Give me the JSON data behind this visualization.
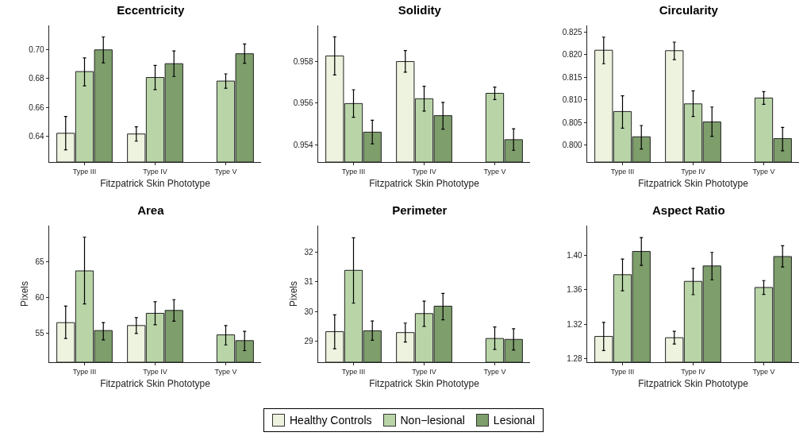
{
  "chart_data": [
    {
      "type": "bar",
      "title": "Eccentricity",
      "xlabel": "Fitzpatrick Skin Phototype",
      "categories": [
        "Type III",
        "Type IV",
        "Type V"
      ],
      "ylim": [
        0.622,
        0.717
      ],
      "yticks": [
        0.64,
        0.66,
        0.68,
        {
          "value": 0.7,
          "label": "0.70"
        }
      ],
      "grid": false,
      "legend": "bottom",
      "series": [
        {
          "name": "Healthy Controls",
          "color": "#edf3df",
          "values": [
            0.642,
            0.6415,
            null
          ],
          "errors": [
            [
              0.6305,
              0.6537
            ],
            [
              0.6365,
              0.6465
            ],
            null
          ]
        },
        {
          "name": "Non−lesional",
          "color": "#b9d5a8",
          "values": [
            0.6849,
            0.6808,
            0.6783
          ],
          "errors": [
            [
              0.675,
              0.6944
            ],
            [
              0.6723,
              0.6892
            ],
            [
              0.6733,
              0.6833
            ]
          ]
        },
        {
          "name": "Lesional",
          "color": "#7e9e6c",
          "values": [
            0.7,
            0.6904,
            0.6973
          ],
          "errors": [
            [
              0.691,
              0.709
            ],
            [
              0.6815,
              0.6993
            ],
            [
              0.6907,
              0.7041
            ]
          ]
        }
      ]
    },
    {
      "type": "bar",
      "title": "Solidity",
      "xlabel": "Fitzpatrick Skin Phototype",
      "categories": [
        "Type III",
        "Type IV",
        "Type V"
      ],
      "ylim": [
        0.95318,
        0.95972
      ],
      "yticks": [
        0.954,
        0.956,
        0.958
      ],
      "grid": false,
      "legend": "bottom",
      "series": [
        {
          "name": "Healthy Controls",
          "color": "#edf3df",
          "values": [
            0.95826,
            0.95799,
            null
          ],
          "errors": [
            [
              0.95735,
              0.95917
            ],
            [
              0.95748,
              0.95852
            ],
            null
          ]
        },
        {
          "name": "Non−lesional",
          "color": "#b9d5a8",
          "values": [
            0.95598,
            0.95621,
            0.95647
          ],
          "errors": [
            [
              0.95532,
              0.95664
            ],
            [
              0.95562,
              0.95681
            ],
            [
              0.95617,
              0.95677
            ]
          ]
        },
        {
          "name": "Lesional",
          "color": "#7e9e6c",
          "values": [
            0.95461,
            0.9554,
            0.95425
          ],
          "errors": [
            [
              0.95405,
              0.95518
            ],
            [
              0.95475,
              0.95604
            ],
            [
              0.95374,
              0.95477
            ]
          ]
        }
      ]
    },
    {
      "type": "bar",
      "title": "Circularity",
      "xlabel": "Fitzpatrick Skin Phototype",
      "categories": [
        "Type III",
        "Type IV",
        "Type V"
      ],
      "ylim": [
        0.7962,
        0.8265
      ],
      "yticks": [
        {
          "value": 0.8,
          "label": "0.800"
        },
        0.805,
        {
          "value": 0.81,
          "label": "0.810"
        },
        0.815,
        {
          "value": 0.82,
          "label": "0.820"
        },
        0.825
      ],
      "grid": false,
      "legend": "bottom",
      "series": [
        {
          "name": "Healthy Controls",
          "color": "#edf3df",
          "values": [
            0.821,
            0.8209,
            null
          ],
          "errors": [
            [
              0.818,
              0.8239
            ],
            [
              0.8189,
              0.8228
            ],
            null
          ]
        },
        {
          "name": "Non−lesional",
          "color": "#b9d5a8",
          "values": [
            0.8074,
            0.8091,
            0.8104
          ],
          "errors": [
            [
              0.8037,
              0.8109
            ],
            [
              0.8063,
              0.812
            ],
            [
              0.809,
              0.8118
            ]
          ]
        },
        {
          "name": "Lesional",
          "color": "#7e9e6c",
          "values": [
            0.8018,
            0.8051,
            0.8014
          ],
          "errors": [
            [
              0.7991,
              0.8043
            ],
            [
              0.8019,
              0.8084
            ],
            [
              0.7987,
              0.8039
            ]
          ]
        }
      ]
    },
    {
      "type": "bar",
      "title": "Area",
      "xlabel": "Fitzpatrick Skin Phototype",
      "ylabel": "Pixels",
      "categories": [
        "Type III",
        "Type IV",
        "Type V"
      ],
      "ylim": [
        51,
        70
      ],
      "yticks": [
        55,
        60,
        65
      ],
      "grid": false,
      "legend": "bottom",
      "series": [
        {
          "name": "Healthy Controls",
          "color": "#edf3df",
          "values": [
            56.5,
            56.1,
            null
          ],
          "errors": [
            [
              54.3,
              58.8
            ],
            [
              55,
              57.2
            ],
            null
          ]
        },
        {
          "name": "Non−lesional",
          "color": "#b9d5a8",
          "values": [
            63.7,
            57.8,
            54.8
          ],
          "errors": [
            [
              59.1,
              68.4
            ],
            [
              56.2,
              59.4
            ],
            [
              53.4,
              56.1
            ]
          ]
        },
        {
          "name": "Lesional",
          "color": "#7e9e6c",
          "values": [
            55.4,
            58.2,
            54
          ],
          "errors": [
            [
              54.1,
              56.5
            ],
            [
              56.7,
              59.7
            ],
            [
              52.6,
              55.3
            ]
          ]
        }
      ]
    },
    {
      "type": "bar",
      "title": "Perimeter",
      "xlabel": "Fitzpatrick Skin Phototype",
      "ylabel": "Pixels",
      "categories": [
        "Type III",
        "Type IV",
        "Type V"
      ],
      "ylim": [
        28.29,
        32.9
      ],
      "yticks": [
        29,
        30,
        31,
        32
      ],
      "grid": false,
      "legend": "bottom",
      "series": [
        {
          "name": "Healthy Controls",
          "color": "#edf3df",
          "values": [
            29.32,
            29.29,
            null
          ],
          "errors": [
            [
              28.74,
              29.89
            ],
            [
              28.97,
              29.61
            ],
            null
          ]
        },
        {
          "name": "Non−lesional",
          "color": "#b9d5a8",
          "values": [
            31.39,
            29.93,
            29.09
          ],
          "errors": [
            [
              30.28,
              32.49
            ],
            [
              29.5,
              30.35
            ],
            [
              28.72,
              29.48
            ]
          ]
        },
        {
          "name": "Lesional",
          "color": "#7e9e6c",
          "values": [
            29.35,
            30.18,
            29.06
          ],
          "errors": [
            [
              29.03,
              29.68
            ],
            [
              29.72,
              30.61
            ],
            [
              28.7,
              29.42
            ]
          ]
        }
      ]
    },
    {
      "type": "bar",
      "title": "Aspect Ratio",
      "xlabel": "Fitzpatrick Skin Phototype",
      "categories": [
        "Type III",
        "Type IV",
        "Type V"
      ],
      "ylim": [
        1.276,
        1.434
      ],
      "yticks": [
        1.28,
        1.32,
        1.36,
        {
          "value": 1.4,
          "label": "1.40"
        }
      ],
      "grid": false,
      "legend": "bottom",
      "series": [
        {
          "name": "Healthy Controls",
          "color": "#edf3df",
          "values": [
            1.3058,
            1.3043,
            null
          ],
          "errors": [
            [
              1.2895,
              1.3221
            ],
            [
              1.297,
              1.3117
            ],
            null
          ]
        },
        {
          "name": "Non−lesional",
          "color": "#b9d5a8",
          "values": [
            1.3772,
            1.3695,
            1.3624
          ],
          "errors": [
            [
              1.3585,
              1.3953
            ],
            [
              1.3541,
              1.3846
            ],
            [
              1.3544,
              1.3704
            ]
          ]
        },
        {
          "name": "Lesional",
          "color": "#7e9e6c",
          "values": [
            1.4041,
            1.3873,
            1.3982
          ],
          "errors": [
            [
              1.3879,
              1.4201
            ],
            [
              1.3713,
              1.403
            ],
            [
              1.3861,
              1.4107
            ]
          ]
        }
      ]
    }
  ]
}
